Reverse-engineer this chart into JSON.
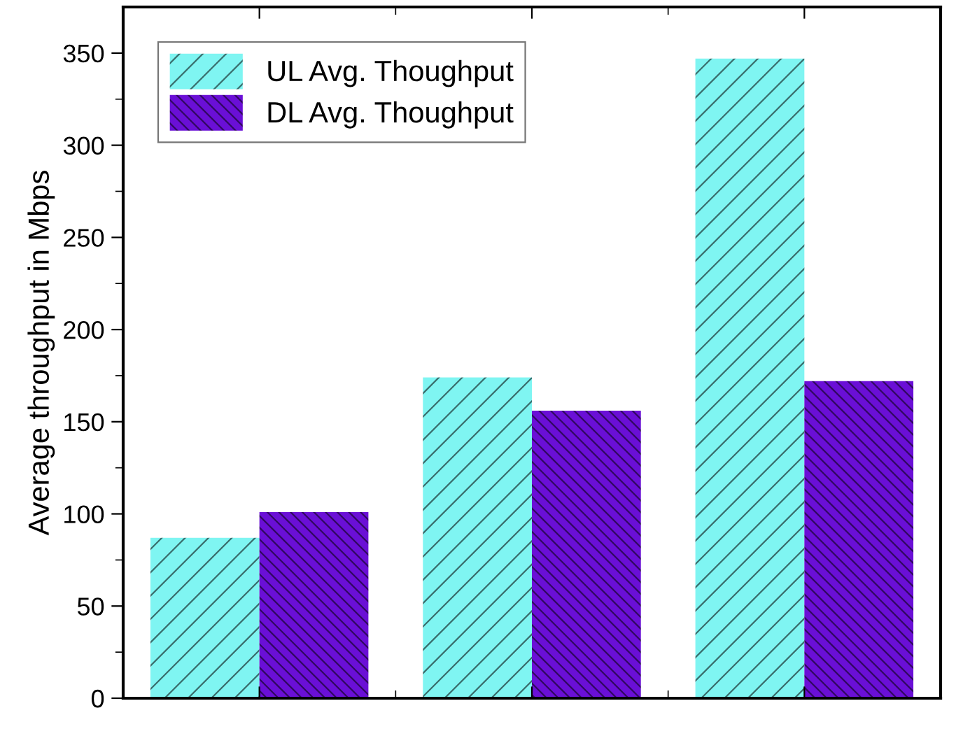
{
  "chart_data": {
    "type": "bar",
    "ylabel": "Average throughput in Mbps",
    "categories": [
      null,
      null,
      null
    ],
    "series": [
      {
        "name": "UL Avg. Thoughput",
        "color": "#7ff5f2",
        "values": [
          87,
          174,
          347
        ]
      },
      {
        "name": "DL Avg. Thoughput",
        "color": "#6a0fd6",
        "values": [
          101,
          156,
          172
        ]
      }
    ],
    "ylim": [
      0,
      375
    ],
    "yticks": [
      0,
      50,
      100,
      150,
      200,
      250,
      300,
      350
    ],
    "legend": "top left",
    "grid": false
  }
}
